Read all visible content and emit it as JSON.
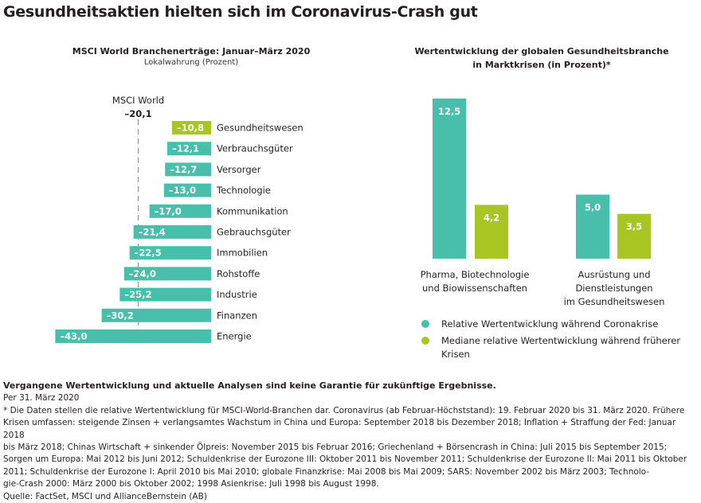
{
  "title": "Gesundheitsaktien hielten sich im Coronavirus-Crash gut",
  "colors": {
    "teal": "#47bfaa",
    "lime": "#a9c522",
    "text": "#231f20",
    "reference_line": "#999999"
  },
  "chart_data": [
    {
      "type": "bar",
      "orientation": "horizontal",
      "title": "MSCI World Branchenerträge: Januar–März 2020",
      "subtitle": "Lokalwahrung (Prozent)",
      "categories": [
        "Gesundheitswesen",
        "Verbrauchsgüter",
        "Versorger",
        "Technologie",
        "Kommunikation",
        "Gebrauchsgüter",
        "Immobilien",
        "Rohstoffe",
        "Industrie",
        "Finanzen",
        "Energie"
      ],
      "values": [
        -10.8,
        -12.1,
        -12.7,
        -13.0,
        -17.0,
        -21.4,
        -22.5,
        -24.0,
        -25.2,
        -30.2,
        -43.0
      ],
      "value_labels": [
        "–10,8",
        "–12,1",
        "–12,7",
        "–13,0",
        "–17,0",
        "–21,4",
        "–22,5",
        "–24,0",
        "–25,2",
        "–30,2",
        "–43,0"
      ],
      "highlight_category": "Gesundheitswesen",
      "reference": {
        "label": "MSCI World",
        "value": -20.1,
        "value_label": "–20,1"
      }
    },
    {
      "type": "bar",
      "title_lines": [
        "Wertentwicklung der globalen Gesundheitsbranche",
        "in Marktkrisen (in Prozent)*"
      ],
      "groups": [
        {
          "label_lines": [
            "Pharma, Biotechnologie",
            "und Biowissenschaften"
          ],
          "values": [
            12.5,
            4.2
          ],
          "value_labels": [
            "12,5",
            "4,2"
          ]
        },
        {
          "label_lines": [
            "Ausrüstung und",
            "Dienstleistungen",
            "im Gesundheitswesen"
          ],
          "values": [
            5.0,
            3.5
          ],
          "value_labels": [
            "5,0",
            "3,5"
          ]
        }
      ],
      "series": [
        {
          "name": "Relative Wertentwicklung während Coronakrise",
          "color": "#47bfaa"
        },
        {
          "name_lines": [
            "Mediane relative Wertentwicklung während früherer",
            "Krisen"
          ],
          "color": "#a9c522"
        }
      ]
    }
  ],
  "footer": {
    "disclaimer": "Vergangene Wertentwicklung und aktuelle Analysen sind keine Garantie für zukünftige Ergebnisse.",
    "lines": [
      "Per 31. März 2020",
      "* Die Daten stellen die relative Wertentwicklung für MSCI-World-Branchen dar. Coronavirus (ab Februar-Höchststand): 19. Februar 2020 bis 31. März 2020. Frühere",
      "Krisen umfassen: steigende Zinsen + verlangsamtes Wachstum in China und Europa: September 2018 bis Dezember 2018; Inflation + Straffung der Fed: Januar 2018",
      "bis März 2018; Chinas Wirtschaft + sinkender Ölpreis: November 2015 bis Februar 2016; Griechenland + Börsencrash in China: Juli 2015 bis September 2015;",
      "Sorgen um Europa: Mai 2012 bis Juni 2012; Schuldenkrise der Eurozone III: Oktober 2011 bis November 2011; Schuldenkrise der Eurozone II: Mai 2011 bis Oktober",
      "2011; Schuldenkrise der Eurozone I: April 2010 bis Mai 2010; globale Finanzkrise: Mai 2008 bis Mai 2009; SARS: November 2002 bis März 2003; Technolo-",
      "gie-Crash 2000: März 2000 bis Oktober 2002; 1998 Asienkrise: Juli 1998 bis August 1998.",
      "Quelle: FactSet, MSCI und AllianceBernstein (AB)"
    ]
  }
}
